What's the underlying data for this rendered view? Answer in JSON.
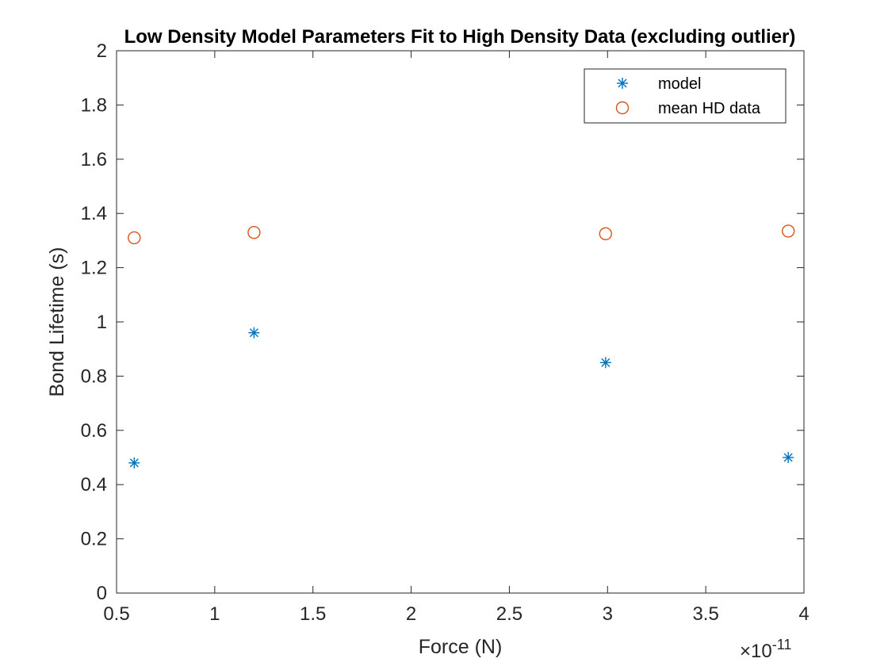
{
  "chart_data": {
    "type": "scatter",
    "title": "Low Density Model Parameters Fit to High Density Data (excluding outlier)",
    "xlabel": "Force (N)",
    "ylabel": "Bond Lifetime (s)",
    "x_exponent_base": "×10",
    "x_exponent_power": "-11",
    "xlim": [
      0.5,
      4
    ],
    "ylim": [
      0,
      2
    ],
    "x_ticks": [
      "0.5",
      "1",
      "1.5",
      "2",
      "2.5",
      "3",
      "3.5",
      "4"
    ],
    "y_ticks": [
      "0",
      "0.2",
      "0.4",
      "0.6",
      "0.8",
      "1",
      "1.2",
      "1.4",
      "1.6",
      "1.8",
      "2"
    ],
    "legend_position": "top-right",
    "grid": false,
    "series": [
      {
        "name": "model",
        "marker": "asterisk",
        "color": "#0072BD",
        "points": [
          {
            "x": 0.59,
            "y": 0.48
          },
          {
            "x": 1.2,
            "y": 0.96
          },
          {
            "x": 2.99,
            "y": 0.85
          },
          {
            "x": 3.92,
            "y": 0.5
          }
        ]
      },
      {
        "name": "mean HD data",
        "marker": "circle",
        "color": "#D95319",
        "points": [
          {
            "x": 0.59,
            "y": 1.31
          },
          {
            "x": 1.2,
            "y": 1.33
          },
          {
            "x": 2.99,
            "y": 1.325
          },
          {
            "x": 3.92,
            "y": 1.335
          }
        ]
      }
    ]
  }
}
